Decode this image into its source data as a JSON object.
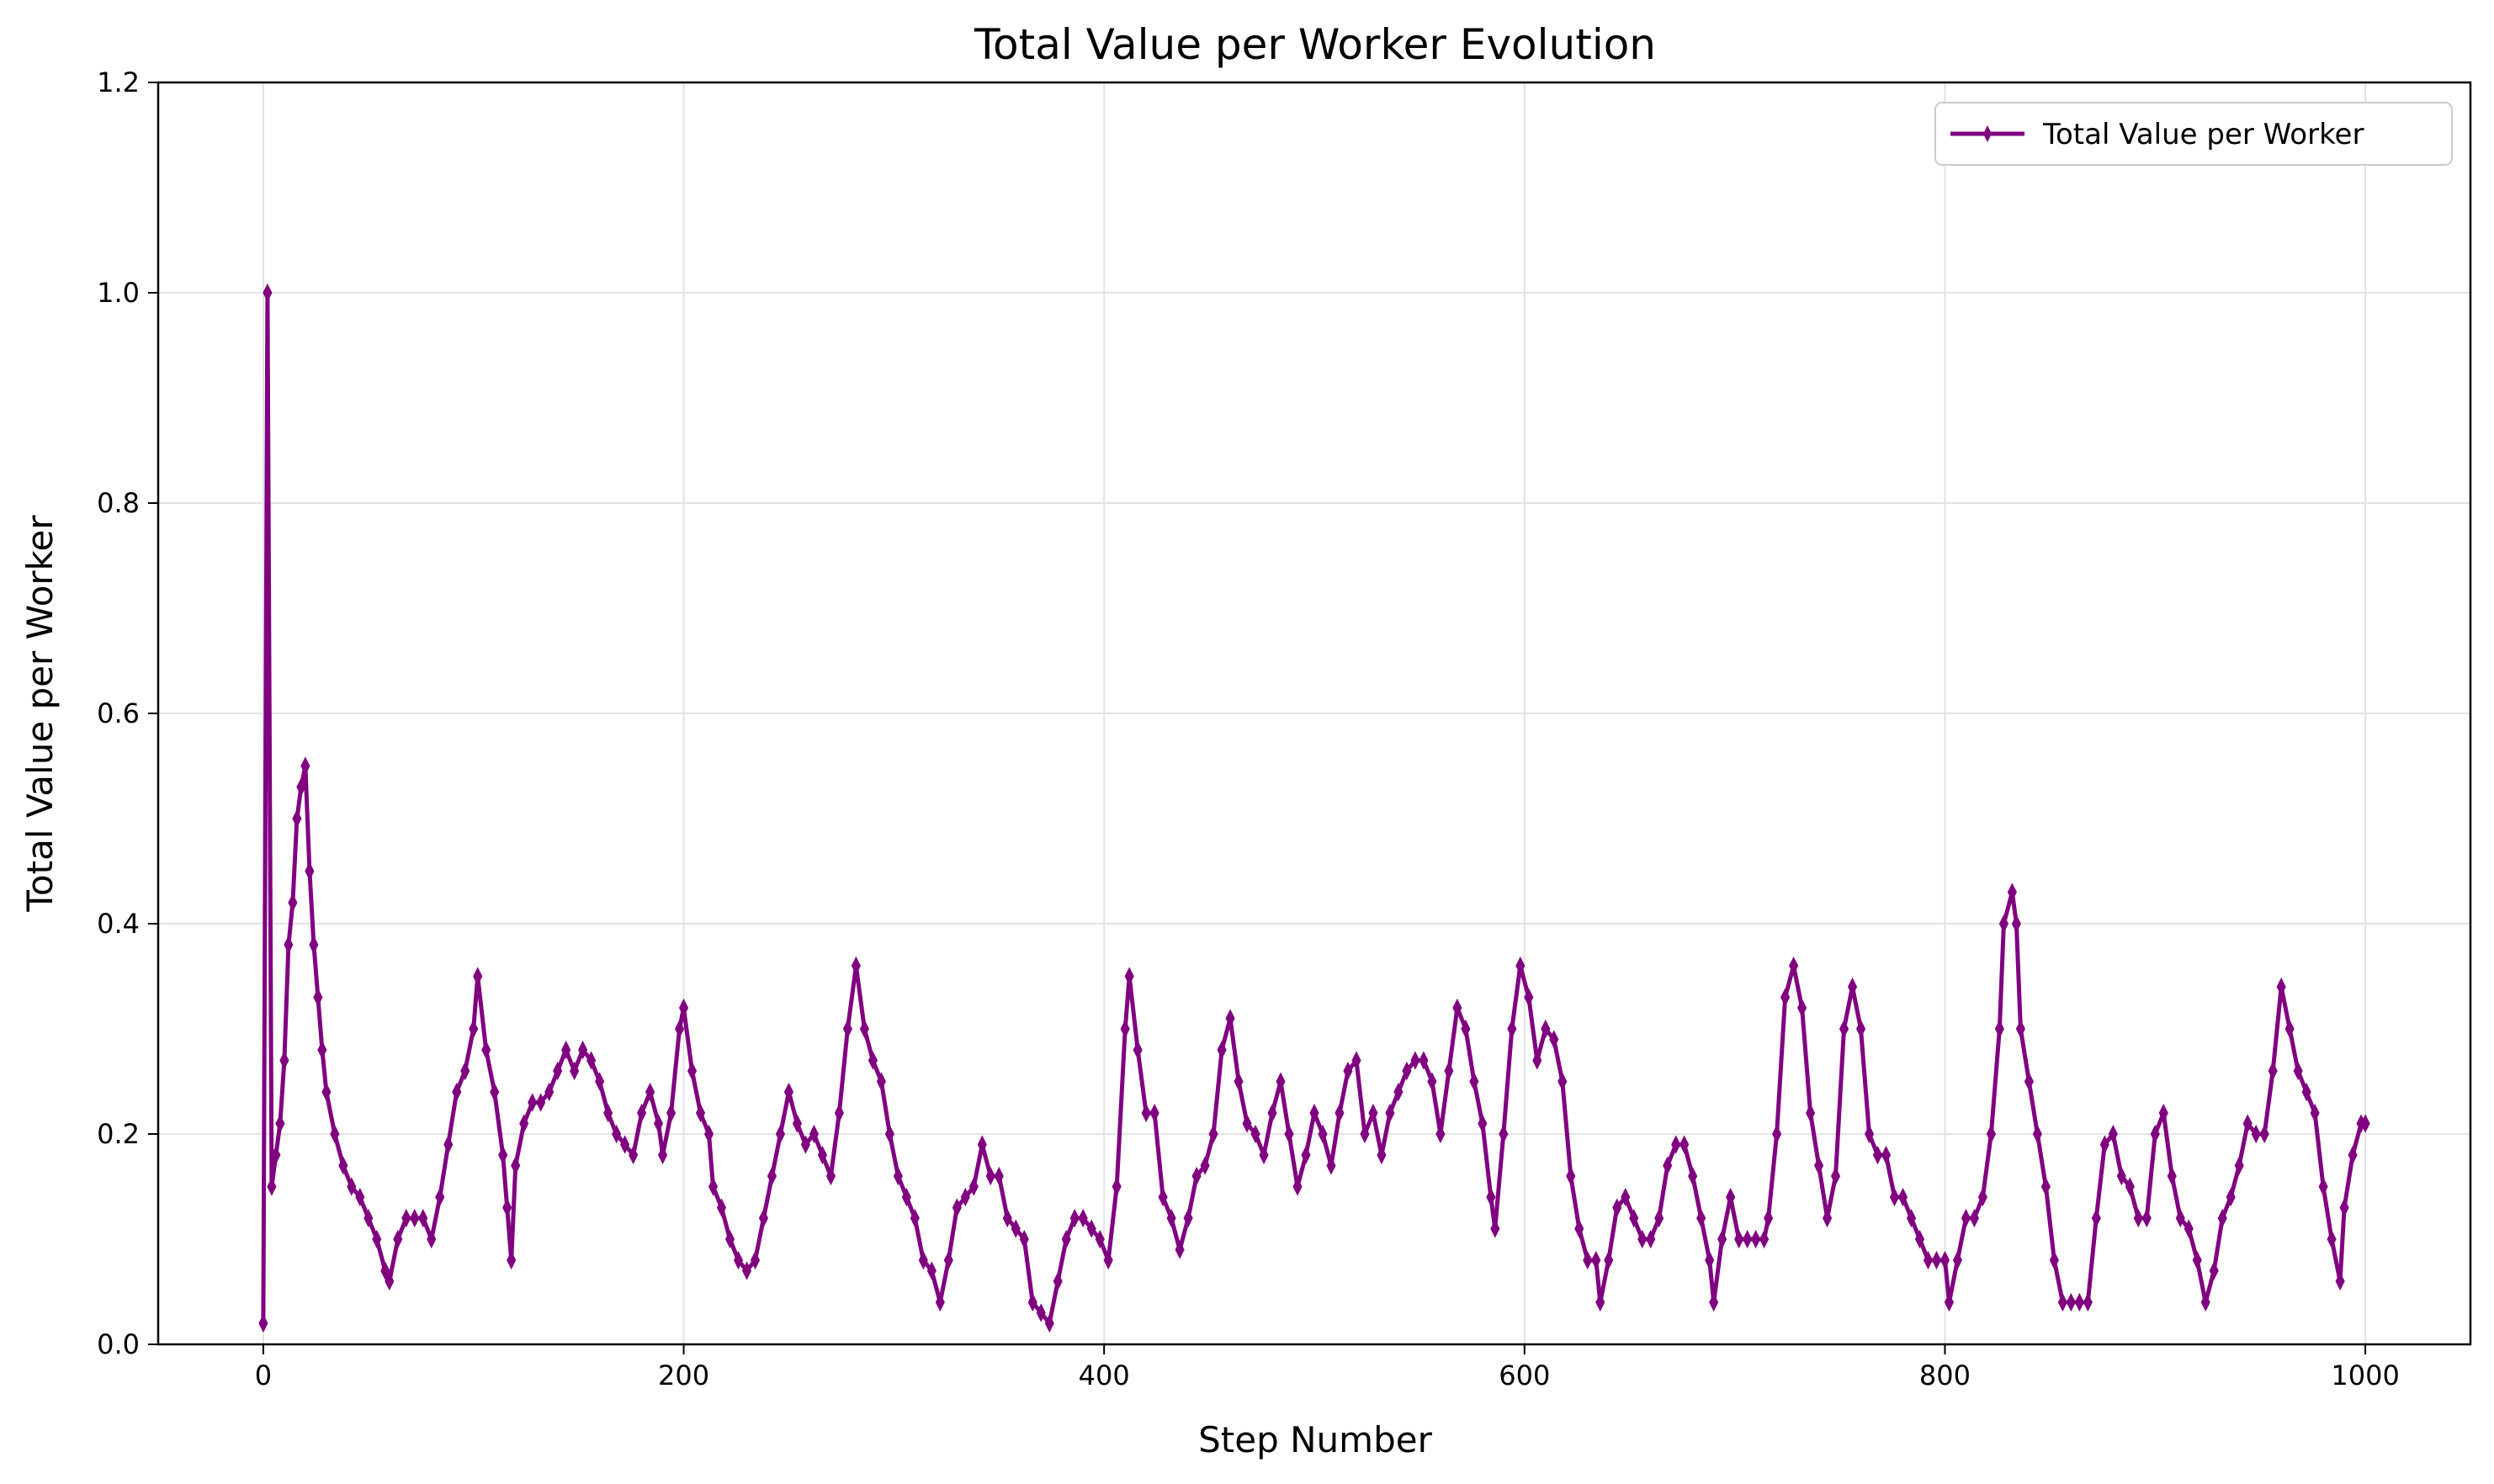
{
  "chart_data": {
    "type": "line",
    "title": "Total Value per Worker Evolution",
    "xlabel": "Step Number",
    "ylabel": "Total Value per Worker",
    "xlim": [
      -50,
      1050
    ],
    "ylim": [
      0,
      1.2
    ],
    "xticks": [
      0,
      200,
      400,
      600,
      800,
      1000
    ],
    "xtick_labels": [
      "0",
      "200",
      "400",
      "600",
      "800",
      "1000"
    ],
    "yticks": [
      0.0,
      0.2,
      0.4,
      0.6,
      0.8,
      1.0,
      1.2
    ],
    "ytick_labels": [
      "0.0",
      "0.2",
      "0.4",
      "0.6",
      "0.8",
      "1.0",
      "1.2"
    ],
    "grid": true,
    "legend_position": "top-right",
    "series": [
      {
        "name": "Total Value per Worker",
        "color": "#800080",
        "marker": "thin-diamond",
        "points": [
          [
            0,
            0.02
          ],
          [
            2,
            1.0
          ],
          [
            4,
            0.15
          ],
          [
            6,
            0.18
          ],
          [
            8,
            0.21
          ],
          [
            10,
            0.27
          ],
          [
            12,
            0.38
          ],
          [
            14,
            0.42
          ],
          [
            16,
            0.5
          ],
          [
            18,
            0.53
          ],
          [
            20,
            0.55
          ],
          [
            22,
            0.45
          ],
          [
            24,
            0.38
          ],
          [
            26,
            0.33
          ],
          [
            28,
            0.28
          ],
          [
            30,
            0.24
          ],
          [
            34,
            0.2
          ],
          [
            38,
            0.17
          ],
          [
            42,
            0.15
          ],
          [
            46,
            0.14
          ],
          [
            50,
            0.12
          ],
          [
            54,
            0.1
          ],
          [
            58,
            0.07
          ],
          [
            60,
            0.06
          ],
          [
            64,
            0.1
          ],
          [
            68,
            0.12
          ],
          [
            72,
            0.12
          ],
          [
            76,
            0.12
          ],
          [
            80,
            0.1
          ],
          [
            84,
            0.14
          ],
          [
            88,
            0.19
          ],
          [
            92,
            0.24
          ],
          [
            96,
            0.26
          ],
          [
            100,
            0.3
          ],
          [
            102,
            0.35
          ],
          [
            106,
            0.28
          ],
          [
            110,
            0.24
          ],
          [
            114,
            0.18
          ],
          [
            116,
            0.13
          ],
          [
            118,
            0.08
          ],
          [
            120,
            0.17
          ],
          [
            124,
            0.21
          ],
          [
            128,
            0.23
          ],
          [
            132,
            0.23
          ],
          [
            136,
            0.24
          ],
          [
            140,
            0.26
          ],
          [
            144,
            0.28
          ],
          [
            148,
            0.26
          ],
          [
            152,
            0.28
          ],
          [
            156,
            0.27
          ],
          [
            160,
            0.25
          ],
          [
            164,
            0.22
          ],
          [
            168,
            0.2
          ],
          [
            172,
            0.19
          ],
          [
            176,
            0.18
          ],
          [
            180,
            0.22
          ],
          [
            184,
            0.24
          ],
          [
            188,
            0.21
          ],
          [
            190,
            0.18
          ],
          [
            194,
            0.22
          ],
          [
            198,
            0.3
          ],
          [
            200,
            0.32
          ],
          [
            204,
            0.26
          ],
          [
            208,
            0.22
          ],
          [
            212,
            0.2
          ],
          [
            214,
            0.15
          ],
          [
            218,
            0.13
          ],
          [
            222,
            0.1
          ],
          [
            226,
            0.08
          ],
          [
            230,
            0.07
          ],
          [
            234,
            0.08
          ],
          [
            238,
            0.12
          ],
          [
            242,
            0.16
          ],
          [
            246,
            0.2
          ],
          [
            250,
            0.24
          ],
          [
            254,
            0.21
          ],
          [
            258,
            0.19
          ],
          [
            262,
            0.2
          ],
          [
            266,
            0.18
          ],
          [
            270,
            0.16
          ],
          [
            274,
            0.22
          ],
          [
            278,
            0.3
          ],
          [
            282,
            0.36
          ],
          [
            286,
            0.3
          ],
          [
            290,
            0.27
          ],
          [
            294,
            0.25
          ],
          [
            298,
            0.2
          ],
          [
            302,
            0.16
          ],
          [
            306,
            0.14
          ],
          [
            310,
            0.12
          ],
          [
            314,
            0.08
          ],
          [
            318,
            0.07
          ],
          [
            322,
            0.04
          ],
          [
            326,
            0.08
          ],
          [
            330,
            0.13
          ],
          [
            334,
            0.14
          ],
          [
            338,
            0.15
          ],
          [
            342,
            0.19
          ],
          [
            346,
            0.16
          ],
          [
            350,
            0.16
          ],
          [
            354,
            0.12
          ],
          [
            358,
            0.11
          ],
          [
            362,
            0.1
          ],
          [
            366,
            0.04
          ],
          [
            370,
            0.03
          ],
          [
            374,
            0.02
          ],
          [
            378,
            0.06
          ],
          [
            382,
            0.1
          ],
          [
            386,
            0.12
          ],
          [
            390,
            0.12
          ],
          [
            394,
            0.11
          ],
          [
            398,
            0.1
          ],
          [
            402,
            0.08
          ],
          [
            406,
            0.15
          ],
          [
            410,
            0.3
          ],
          [
            412,
            0.35
          ],
          [
            416,
            0.28
          ],
          [
            420,
            0.22
          ],
          [
            424,
            0.22
          ],
          [
            428,
            0.14
          ],
          [
            432,
            0.12
          ],
          [
            436,
            0.09
          ],
          [
            440,
            0.12
          ],
          [
            444,
            0.16
          ],
          [
            448,
            0.17
          ],
          [
            452,
            0.2
          ],
          [
            456,
            0.28
          ],
          [
            460,
            0.31
          ],
          [
            464,
            0.25
          ],
          [
            468,
            0.21
          ],
          [
            472,
            0.2
          ],
          [
            476,
            0.18
          ],
          [
            480,
            0.22
          ],
          [
            484,
            0.25
          ],
          [
            488,
            0.2
          ],
          [
            492,
            0.15
          ],
          [
            496,
            0.18
          ],
          [
            500,
            0.22
          ],
          [
            504,
            0.2
          ],
          [
            508,
            0.17
          ],
          [
            512,
            0.22
          ],
          [
            516,
            0.26
          ],
          [
            520,
            0.27
          ],
          [
            524,
            0.2
          ],
          [
            528,
            0.22
          ],
          [
            532,
            0.18
          ],
          [
            536,
            0.22
          ],
          [
            540,
            0.24
          ],
          [
            544,
            0.26
          ],
          [
            548,
            0.27
          ],
          [
            552,
            0.27
          ],
          [
            556,
            0.25
          ],
          [
            560,
            0.2
          ],
          [
            564,
            0.26
          ],
          [
            568,
            0.32
          ],
          [
            572,
            0.3
          ],
          [
            576,
            0.25
          ],
          [
            580,
            0.21
          ],
          [
            584,
            0.14
          ],
          [
            586,
            0.11
          ],
          [
            590,
            0.2
          ],
          [
            594,
            0.3
          ],
          [
            598,
            0.36
          ],
          [
            602,
            0.33
          ],
          [
            606,
            0.27
          ],
          [
            610,
            0.3
          ],
          [
            614,
            0.29
          ],
          [
            618,
            0.25
          ],
          [
            622,
            0.16
          ],
          [
            626,
            0.11
          ],
          [
            630,
            0.08
          ],
          [
            634,
            0.08
          ],
          [
            636,
            0.04
          ],
          [
            640,
            0.08
          ],
          [
            644,
            0.13
          ],
          [
            648,
            0.14
          ],
          [
            652,
            0.12
          ],
          [
            656,
            0.1
          ],
          [
            660,
            0.1
          ],
          [
            664,
            0.12
          ],
          [
            668,
            0.17
          ],
          [
            672,
            0.19
          ],
          [
            676,
            0.19
          ],
          [
            680,
            0.16
          ],
          [
            684,
            0.12
          ],
          [
            688,
            0.08
          ],
          [
            690,
            0.04
          ],
          [
            694,
            0.1
          ],
          [
            698,
            0.14
          ],
          [
            702,
            0.1
          ],
          [
            706,
            0.1
          ],
          [
            710,
            0.1
          ],
          [
            714,
            0.1
          ],
          [
            716,
            0.12
          ],
          [
            720,
            0.2
          ],
          [
            724,
            0.33
          ],
          [
            728,
            0.36
          ],
          [
            732,
            0.32
          ],
          [
            736,
            0.22
          ],
          [
            740,
            0.17
          ],
          [
            744,
            0.12
          ],
          [
            748,
            0.16
          ],
          [
            752,
            0.3
          ],
          [
            756,
            0.34
          ],
          [
            760,
            0.3
          ],
          [
            764,
            0.2
          ],
          [
            768,
            0.18
          ],
          [
            772,
            0.18
          ],
          [
            776,
            0.14
          ],
          [
            780,
            0.14
          ],
          [
            784,
            0.12
          ],
          [
            788,
            0.1
          ],
          [
            792,
            0.08
          ],
          [
            796,
            0.08
          ],
          [
            800,
            0.08
          ],
          [
            802,
            0.04
          ],
          [
            806,
            0.08
          ],
          [
            810,
            0.12
          ],
          [
            814,
            0.12
          ],
          [
            818,
            0.14
          ],
          [
            822,
            0.2
          ],
          [
            826,
            0.3
          ],
          [
            828,
            0.4
          ],
          [
            832,
            0.43
          ],
          [
            834,
            0.4
          ],
          [
            836,
            0.3
          ],
          [
            840,
            0.25
          ],
          [
            844,
            0.2
          ],
          [
            848,
            0.15
          ],
          [
            852,
            0.08
          ],
          [
            856,
            0.04
          ],
          [
            860,
            0.04
          ],
          [
            864,
            0.04
          ],
          [
            868,
            0.04
          ],
          [
            872,
            0.12
          ],
          [
            876,
            0.19
          ],
          [
            880,
            0.2
          ],
          [
            884,
            0.16
          ],
          [
            888,
            0.15
          ],
          [
            892,
            0.12
          ],
          [
            896,
            0.12
          ],
          [
            900,
            0.2
          ],
          [
            904,
            0.22
          ],
          [
            908,
            0.16
          ],
          [
            912,
            0.12
          ],
          [
            916,
            0.11
          ],
          [
            920,
            0.08
          ],
          [
            924,
            0.04
          ],
          [
            928,
            0.07
          ],
          [
            932,
            0.12
          ],
          [
            936,
            0.14
          ],
          [
            940,
            0.17
          ],
          [
            944,
            0.21
          ],
          [
            948,
            0.2
          ],
          [
            952,
            0.2
          ],
          [
            956,
            0.26
          ],
          [
            960,
            0.34
          ],
          [
            964,
            0.3
          ],
          [
            968,
            0.26
          ],
          [
            972,
            0.24
          ],
          [
            976,
            0.22
          ],
          [
            980,
            0.15
          ],
          [
            984,
            0.1
          ],
          [
            988,
            0.06
          ],
          [
            990,
            0.13
          ],
          [
            994,
            0.18
          ],
          [
            998,
            0.21
          ],
          [
            1000,
            0.21
          ]
        ]
      }
    ]
  }
}
